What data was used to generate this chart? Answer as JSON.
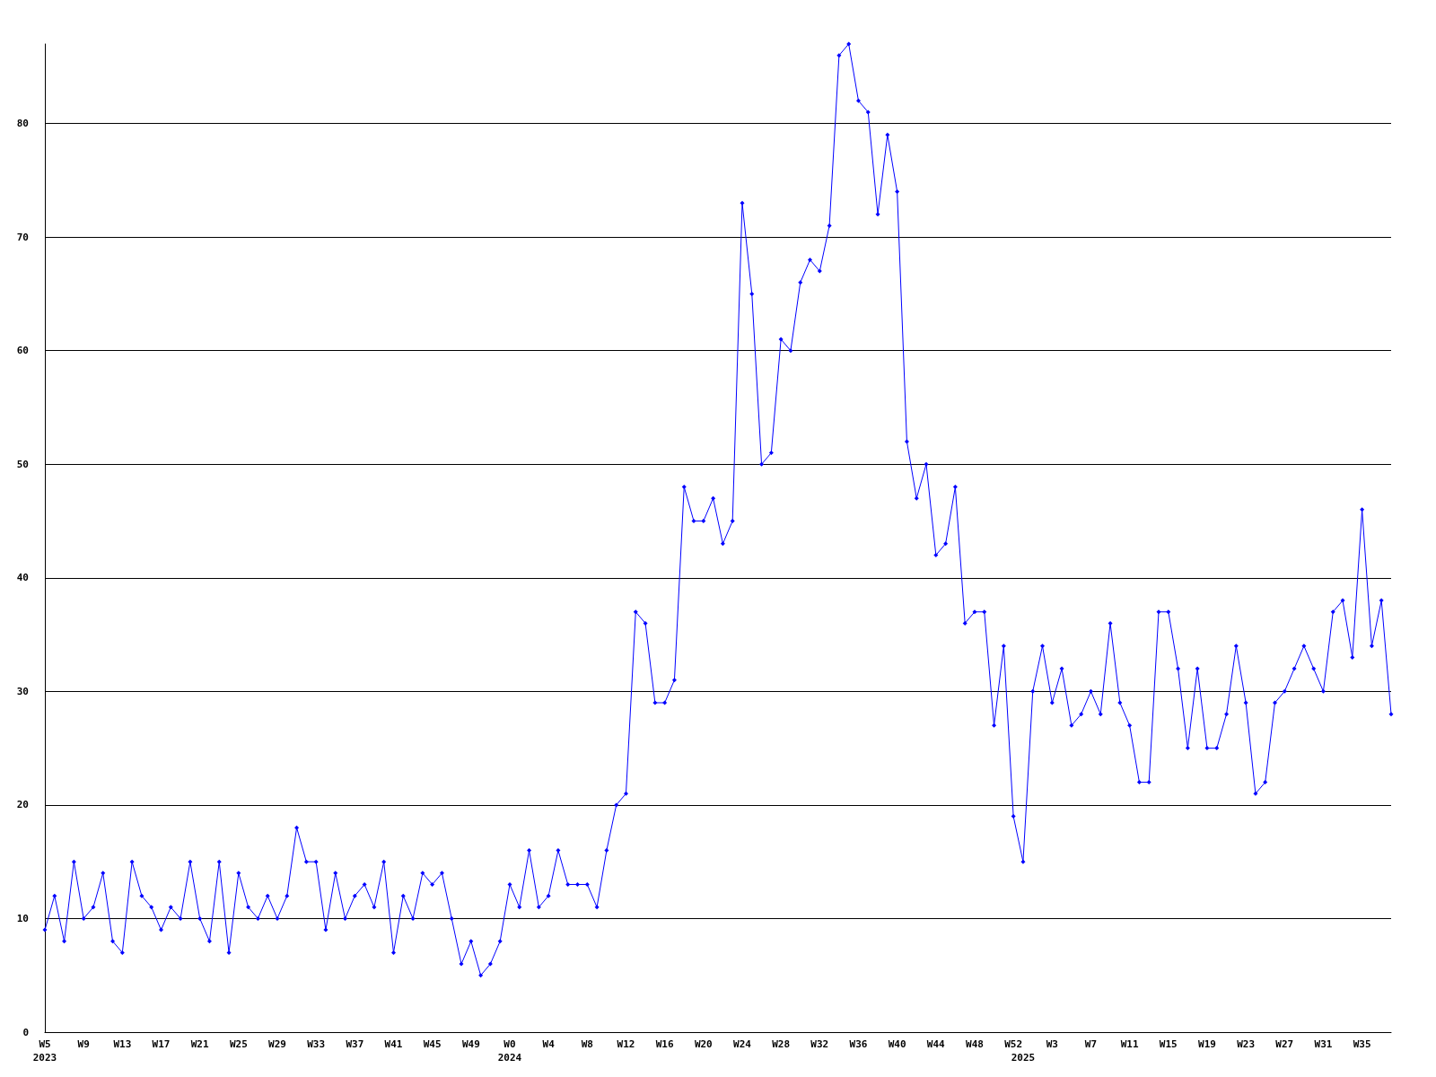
{
  "chart_data": {
    "type": "line",
    "categories": [
      "W5\n2023",
      null,
      null,
      null,
      "W9",
      null,
      null,
      null,
      "W13",
      null,
      null,
      null,
      "W17",
      null,
      null,
      null,
      "W21",
      null,
      null,
      null,
      "W25",
      null,
      null,
      null,
      "W29",
      null,
      null,
      null,
      "W33",
      null,
      null,
      null,
      "W37",
      null,
      null,
      null,
      "W41",
      null,
      null,
      null,
      "W45",
      null,
      null,
      null,
      "W49",
      null,
      null,
      null,
      "W0\n2024",
      null,
      null,
      null,
      "W4",
      null,
      null,
      null,
      "W8",
      null,
      null,
      null,
      "W12",
      null,
      null,
      null,
      "W16",
      null,
      null,
      null,
      "W20",
      null,
      null,
      null,
      "W24",
      null,
      null,
      null,
      "W28",
      null,
      null,
      null,
      "W32",
      null,
      null,
      null,
      "W36",
      null,
      null,
      null,
      "W40",
      null,
      null,
      null,
      "W44",
      null,
      null,
      null,
      "W48",
      null,
      null,
      null,
      "W52",
      "\n2025",
      null,
      null,
      "W3",
      null,
      null,
      null,
      "W7",
      null,
      null,
      null,
      "W11",
      null,
      null,
      null,
      "W15",
      null,
      null,
      null,
      "W19",
      null,
      null,
      null,
      "W23",
      null,
      null,
      null,
      "W27",
      null,
      null,
      null,
      "W31",
      null,
      null,
      null,
      "W35",
      null,
      null,
      null
    ],
    "values": [
      9,
      12,
      8,
      15,
      10,
      11,
      14,
      8,
      7,
      15,
      12,
      11,
      9,
      11,
      10,
      15,
      10,
      8,
      15,
      7,
      14,
      11,
      10,
      12,
      10,
      12,
      18,
      15,
      15,
      9,
      14,
      10,
      12,
      13,
      11,
      15,
      7,
      12,
      10,
      14,
      13,
      14,
      10,
      6,
      8,
      5,
      6,
      8,
      13,
      11,
      16,
      11,
      12,
      16,
      13,
      13,
      13,
      11,
      16,
      20,
      21,
      37,
      36,
      29,
      29,
      31,
      48,
      45,
      45,
      47,
      43,
      45,
      73,
      65,
      50,
      51,
      61,
      60,
      66,
      68,
      67,
      71,
      86,
      87,
      82,
      81,
      72,
      79,
      74,
      52,
      47,
      50,
      42,
      43,
      48,
      36,
      37,
      37,
      27,
      34,
      19,
      15,
      30,
      34,
      29,
      32,
      27,
      28,
      30,
      28,
      36,
      29,
      27,
      22,
      22,
      37,
      37,
      32,
      25,
      32,
      25,
      25,
      28,
      34,
      29,
      21,
      22,
      29,
      30,
      32,
      34,
      32,
      30,
      37,
      38,
      33,
      46,
      34,
      38,
      28
    ],
    "color": "#0000ff",
    "ylim": [
      0,
      87
    ],
    "yticks": [
      0,
      10,
      20,
      30,
      40,
      50,
      60,
      70,
      80
    ],
    "grid": "y",
    "marker": "diamond",
    "line_style": "solid"
  }
}
